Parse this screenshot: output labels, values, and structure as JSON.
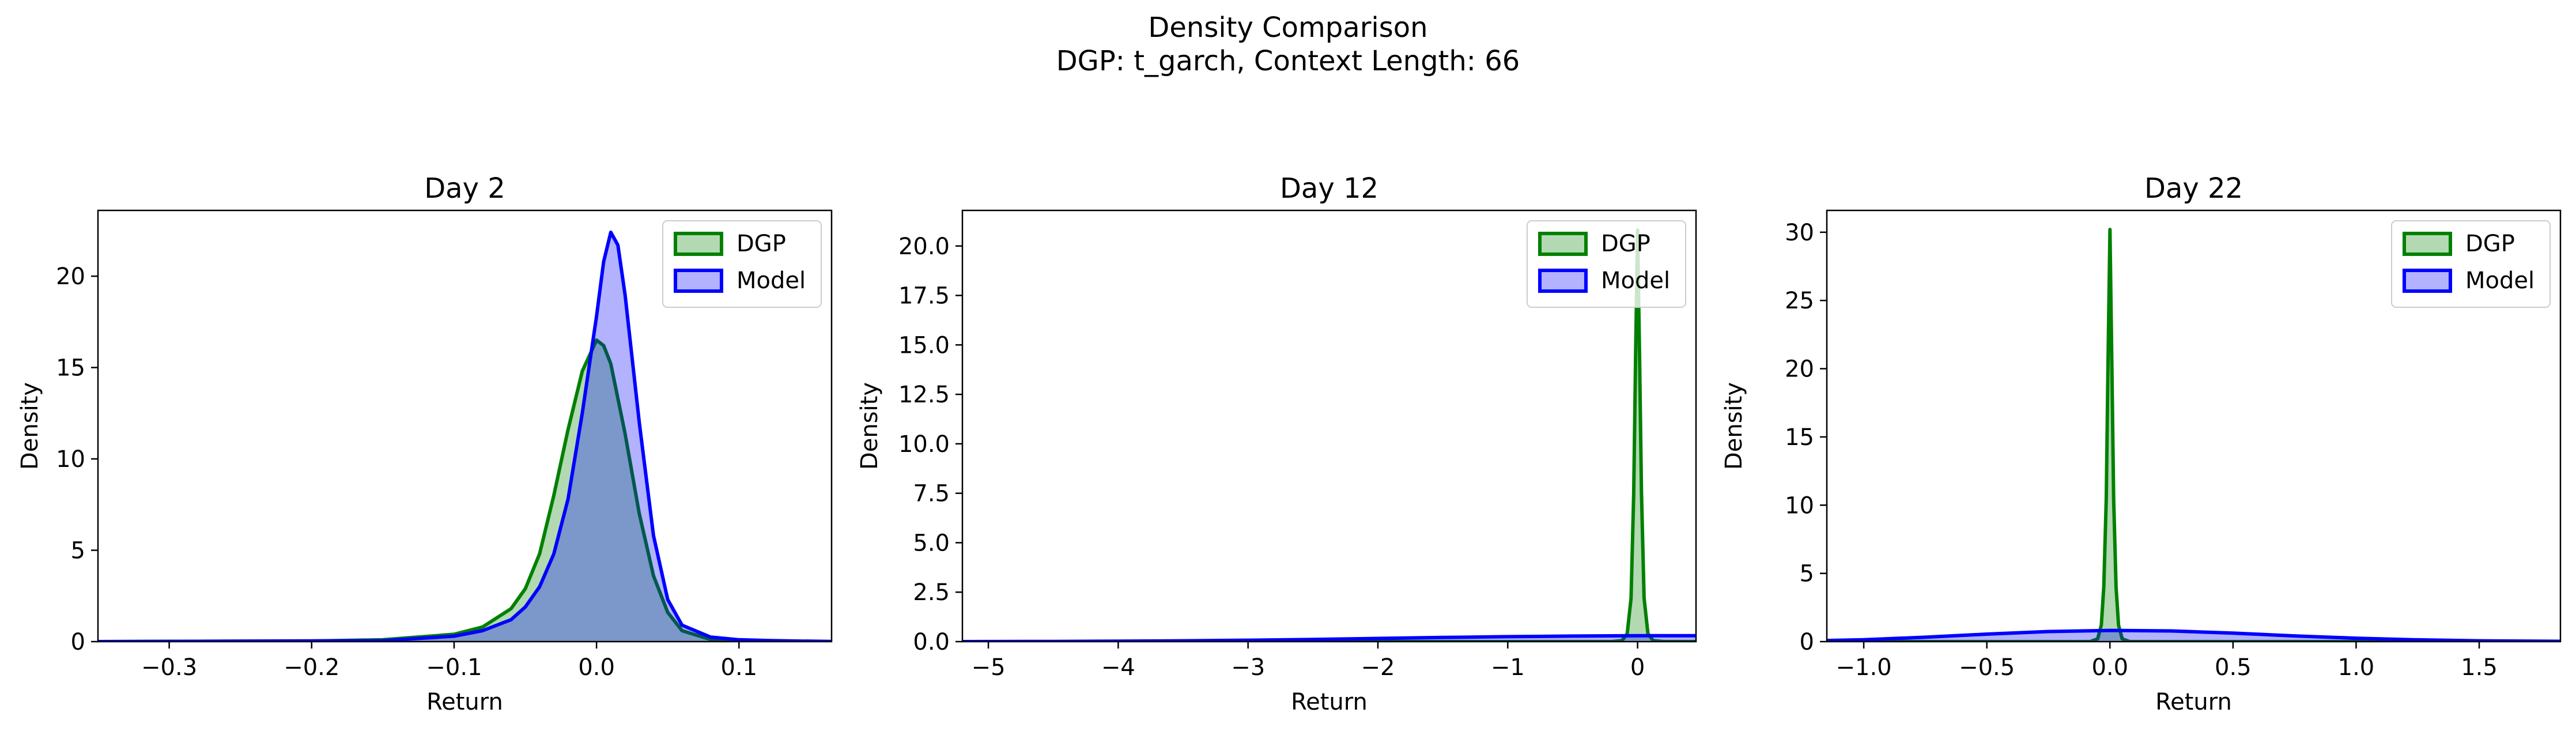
{
  "figure": {
    "title_line1": "Density Comparison",
    "title_line2": "DGP: t_garch, Context Length: 66"
  },
  "colors": {
    "dgp_line": "#008000",
    "dgp_fill": "#008000",
    "model_line": "#0000ff",
    "model_fill": "#0000ff"
  },
  "legend": {
    "labels": [
      "DGP",
      "Model"
    ],
    "position": "upper right"
  },
  "chart_data": [
    {
      "type": "area",
      "title": "Day 2",
      "xlabel": "Return",
      "ylabel": "Density",
      "xlim": [
        -0.35,
        0.165
      ],
      "ylim": [
        0,
        23.6
      ],
      "xticks": [
        -0.3,
        -0.2,
        -0.1,
        0.0,
        0.1
      ],
      "xtick_labels": [
        "−0.3",
        "−0.2",
        "−0.1",
        "0.0",
        "0.1"
      ],
      "yticks": [
        0,
        5,
        10,
        15,
        20
      ],
      "ytick_labels": [
        "0",
        "5",
        "10",
        "15",
        "20"
      ],
      "series": [
        {
          "name": "DGP",
          "x": [
            -0.35,
            -0.2,
            -0.15,
            -0.1,
            -0.08,
            -0.06,
            -0.05,
            -0.04,
            -0.03,
            -0.02,
            -0.01,
            0.0,
            0.005,
            0.01,
            0.02,
            0.03,
            0.04,
            0.05,
            0.06,
            0.08,
            0.1,
            0.12,
            0.165
          ],
          "y": [
            0,
            0.03,
            0.1,
            0.4,
            0.8,
            1.8,
            2.9,
            4.8,
            8.0,
            11.6,
            14.8,
            16.5,
            16.2,
            15.2,
            11.4,
            7.0,
            3.6,
            1.6,
            0.6,
            0.12,
            0.03,
            0.01,
            0
          ]
        },
        {
          "name": "Model",
          "x": [
            -0.35,
            -0.15,
            -0.1,
            -0.08,
            -0.06,
            -0.05,
            -0.04,
            -0.03,
            -0.02,
            -0.01,
            0.0,
            0.005,
            0.01,
            0.015,
            0.02,
            0.03,
            0.04,
            0.05,
            0.06,
            0.08,
            0.1,
            0.12,
            0.14,
            0.165
          ],
          "y": [
            0,
            0.05,
            0.3,
            0.6,
            1.2,
            1.9,
            3.0,
            4.8,
            7.8,
            12.5,
            17.8,
            20.8,
            22.4,
            21.7,
            19.0,
            12.0,
            5.8,
            2.3,
            0.9,
            0.25,
            0.1,
            0.06,
            0.03,
            0.01
          ]
        }
      ]
    },
    {
      "type": "area",
      "title": "Day 12",
      "xlabel": "Return",
      "ylabel": "Density",
      "xlim": [
        -5.2,
        0.45
      ],
      "ylim": [
        0,
        21.8
      ],
      "xticks": [
        -5,
        -4,
        -3,
        -2,
        -1,
        0
      ],
      "xtick_labels": [
        "−5",
        "−4",
        "−3",
        "−2",
        "−1",
        "0"
      ],
      "yticks": [
        0,
        2.5,
        5,
        7.5,
        10,
        12.5,
        15,
        17.5,
        20
      ],
      "ytick_labels": [
        "0.0",
        "2.5",
        "5.0",
        "7.5",
        "10.0",
        "12.5",
        "15.0",
        "17.5",
        "20.0"
      ],
      "series": [
        {
          "name": "DGP",
          "x": [
            -5.2,
            -0.2,
            -0.12,
            -0.08,
            -0.05,
            -0.03,
            -0.015,
            0.0,
            0.015,
            0.03,
            0.05,
            0.08,
            0.12,
            0.2,
            0.45
          ],
          "y": [
            0,
            0,
            0.05,
            0.4,
            2.2,
            7.5,
            14.5,
            20.8,
            14.5,
            7.5,
            2.2,
            0.4,
            0.05,
            0,
            0
          ],
          "y_unbounded_peak": true
        },
        {
          "name": "Model",
          "x": [
            -5.2,
            -4.5,
            -4.0,
            -3.5,
            -3.0,
            -2.5,
            -2.0,
            -1.5,
            -1.0,
            -0.5,
            0.0,
            0.45
          ],
          "y": [
            0.0,
            0.01,
            0.02,
            0.04,
            0.07,
            0.11,
            0.16,
            0.21,
            0.25,
            0.28,
            0.3,
            0.3
          ]
        }
      ]
    },
    {
      "type": "area",
      "title": "Day 22",
      "xlabel": "Return",
      "ylabel": "Density",
      "xlim": [
        -1.15,
        1.83
      ],
      "ylim": [
        0,
        31.6
      ],
      "xticks": [
        -1.0,
        -0.5,
        0.0,
        0.5,
        1.0,
        1.5
      ],
      "xtick_labels": [
        "−1.0",
        "−0.5",
        "0.0",
        "0.5",
        "1.0",
        "1.5"
      ],
      "yticks": [
        0,
        5,
        10,
        15,
        20,
        25,
        30
      ],
      "ytick_labels": [
        "0",
        "5",
        "10",
        "15",
        "20",
        "25",
        "30"
      ],
      "series": [
        {
          "name": "DGP",
          "x": [
            -1.15,
            -0.08,
            -0.05,
            -0.035,
            -0.025,
            -0.015,
            -0.008,
            0.0,
            0.008,
            0.015,
            0.025,
            0.035,
            0.05,
            0.08,
            1.83
          ],
          "y": [
            0,
            0,
            0.2,
            1.2,
            4.0,
            10.5,
            20.0,
            30.2,
            20.0,
            10.5,
            4.0,
            1.2,
            0.2,
            0,
            0
          ]
        },
        {
          "name": "Model",
          "x": [
            -1.15,
            -1.0,
            -0.75,
            -0.5,
            -0.25,
            0.0,
            0.25,
            0.5,
            0.75,
            1.0,
            1.25,
            1.5,
            1.83
          ],
          "y": [
            0.08,
            0.14,
            0.32,
            0.55,
            0.74,
            0.82,
            0.78,
            0.62,
            0.42,
            0.25,
            0.13,
            0.06,
            0.02
          ]
        }
      ]
    }
  ]
}
